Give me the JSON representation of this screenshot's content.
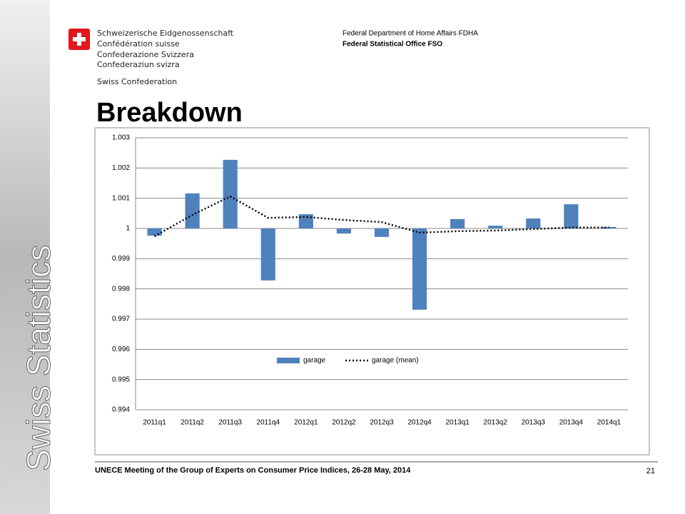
{
  "header": {
    "languages": [
      "Schweizerische Eidgenossenschaft",
      "Confédération suisse",
      "Confederazione Svizzera",
      "Confederaziun svizra"
    ],
    "confederation": "Swiss Confederation",
    "department": "Federal Department of Home Affairs FDHA",
    "office": "Federal Statistical Office FSO",
    "side_label": "Swiss Statistics"
  },
  "title": "Breakdown",
  "chart_data": {
    "type": "bar",
    "categories": [
      "2011q1",
      "2011q2",
      "2011q3",
      "2011q4",
      "2012q1",
      "2012q2",
      "2012q3",
      "2012q4",
      "2013q1",
      "2013q2",
      "2013q3",
      "2013q4",
      "2014q1"
    ],
    "series": [
      {
        "name": "garage",
        "type": "bar",
        "color": "#4f81bd",
        "values": [
          0.99976,
          1.00116,
          1.00227,
          0.99828,
          1.00047,
          0.99983,
          0.99972,
          0.99731,
          1.00031,
          1.00009,
          1.00033,
          1.0008,
          1.00005
        ]
      },
      {
        "name": "garage (mean)",
        "type": "line",
        "color": "#000000",
        "dash": "dotted",
        "values": [
          0.99974,
          1.00045,
          1.00106,
          1.00035,
          1.00038,
          1.00028,
          1.00021,
          0.99986,
          0.99991,
          0.99993,
          0.99998,
          1.00003,
          1.00003
        ]
      }
    ],
    "bar_base": 1,
    "ylim": [
      0.994,
      1.003
    ],
    "yticks": [
      0.994,
      0.995,
      0.996,
      0.997,
      0.998,
      0.999,
      1,
      1.001,
      1.002,
      1.003
    ],
    "grid": true,
    "legend": "bottom"
  },
  "footer": {
    "text": "UNECE Meeting of the Group of Experts on Consumer Price Indices, 26-28 May, 2014",
    "page": "21"
  }
}
